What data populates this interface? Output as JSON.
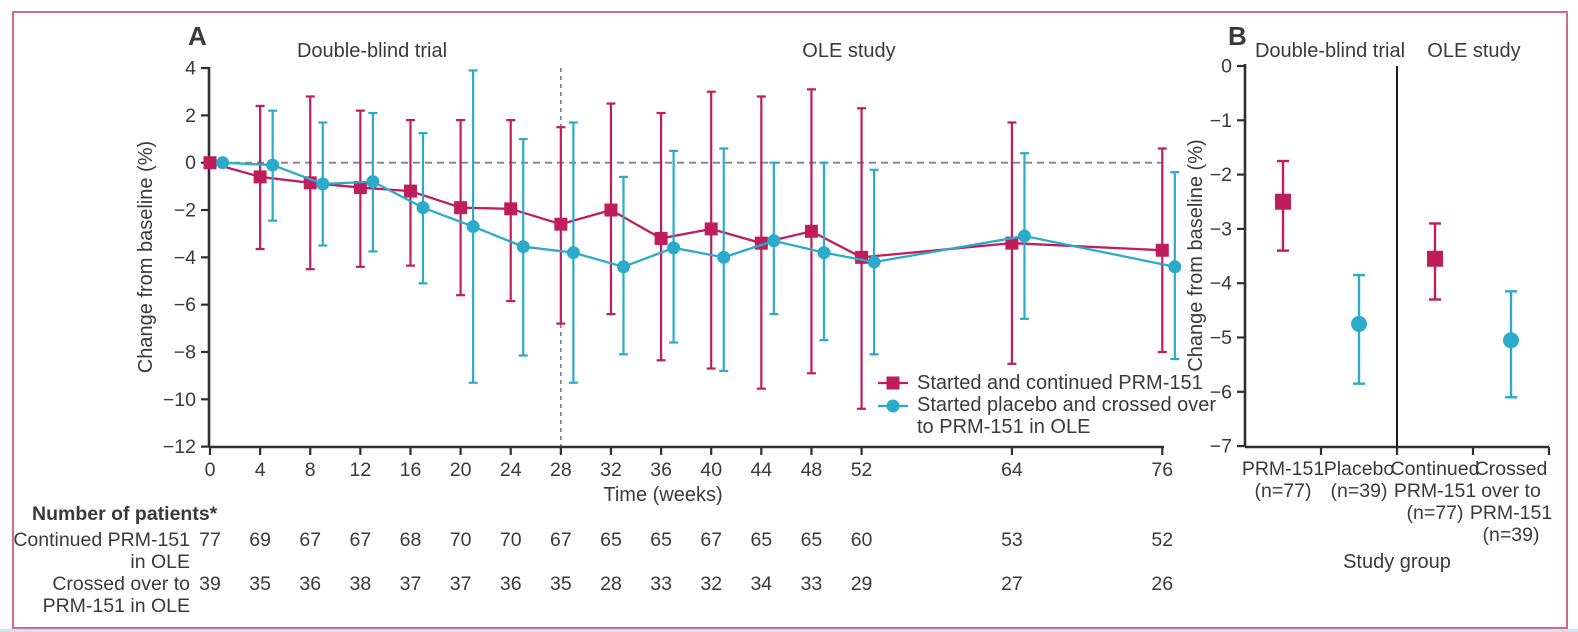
{
  "palette": {
    "red_series": "#bf1d5b",
    "blue_series": "#2caac9",
    "text": "#3a3a3a",
    "axis": "#2f2f2f",
    "dashed_line": "#7d8488",
    "frame_border": "#d4688e",
    "bottom_strip": "#cfe4f0"
  },
  "patients_table": {
    "title": "Number of patients*",
    "rows": [
      {
        "label_lines": [
          "Continued PRM-151",
          "in OLE"
        ],
        "values": [
          77,
          69,
          67,
          67,
          68,
          70,
          70,
          67,
          65,
          65,
          67,
          65,
          65,
          60,
          53,
          52
        ]
      },
      {
        "label_lines": [
          "Crossed over to",
          "PRM-151 in OLE"
        ],
        "values": [
          39,
          35,
          36,
          38,
          37,
          37,
          36,
          35,
          28,
          33,
          32,
          34,
          33,
          29,
          27,
          26
        ]
      }
    ]
  },
  "chart_data": [
    {
      "id": "A",
      "type": "line",
      "panel_label": "A",
      "section_labels": [
        "Double-blind trial",
        "OLE study"
      ],
      "section_divider_week": 28,
      "zero_reference_line": true,
      "xlabel": "Time (weeks)",
      "ylabel": "Change from baseline (%)",
      "xlim": [
        0,
        76
      ],
      "ylim": [
        -12,
        4
      ],
      "yticks": [
        4,
        2,
        0,
        -2,
        -4,
        -6,
        -8,
        -10,
        -12
      ],
      "xticks": [
        0,
        4,
        8,
        12,
        16,
        20,
        24,
        28,
        32,
        36,
        40,
        44,
        48,
        52,
        64,
        76
      ],
      "series": [
        {
          "name": "Started and continued PRM-151",
          "marker": "square",
          "color": "#bf1d5b",
          "x": [
            0,
            4,
            8,
            12,
            16,
            20,
            24,
            28,
            32,
            36,
            40,
            44,
            48,
            52,
            64,
            76
          ],
          "y": [
            0,
            -0.6,
            -0.85,
            -1.05,
            -1.2,
            -1.9,
            -1.95,
            -2.6,
            -2.0,
            -3.2,
            -2.8,
            -3.4,
            -2.9,
            -4.0,
            -3.4,
            -3.7
          ],
          "ci_high": [
            null,
            2.4,
            2.8,
            2.2,
            1.8,
            1.8,
            1.8,
            1.5,
            2.5,
            2.1,
            3.0,
            2.8,
            3.1,
            2.3,
            1.7,
            0.6
          ],
          "ci_low": [
            null,
            -3.65,
            -4.5,
            -4.4,
            -4.35,
            -5.6,
            -5.85,
            -6.8,
            -6.4,
            -8.35,
            -8.7,
            -9.55,
            -8.9,
            -10.4,
            -8.5,
            -8.0
          ]
        },
        {
          "name": "Started placebo and crossed over to PRM-151 in OLE",
          "marker": "circle",
          "color": "#2caac9",
          "x": [
            1,
            5,
            9,
            13,
            17,
            21,
            25,
            29,
            33,
            37,
            41,
            45,
            49,
            53,
            65,
            77
          ],
          "y": [
            0,
            -0.1,
            -0.9,
            -0.8,
            -1.9,
            -2.7,
            -3.55,
            -3.8,
            -4.4,
            -3.6,
            -4.0,
            -3.3,
            -3.8,
            -4.2,
            -3.1,
            -4.4
          ],
          "ci_high": [
            null,
            2.2,
            1.7,
            2.1,
            1.25,
            3.9,
            1.0,
            1.7,
            -0.6,
            0.5,
            0.6,
            0.0,
            0.0,
            -0.3,
            0.4,
            -0.4
          ],
          "ci_low": [
            null,
            -2.45,
            -3.5,
            -3.75,
            -5.1,
            -9.3,
            -8.15,
            -9.3,
            -8.1,
            -7.6,
            -8.8,
            -6.4,
            -7.5,
            -8.1,
            -6.6,
            -8.3
          ]
        }
      ],
      "legend": [
        {
          "series": 0,
          "lines": [
            "Started and continued PRM-151"
          ]
        },
        {
          "series": 1,
          "lines": [
            "Started placebo and crossed over",
            "to PRM-151 in OLE"
          ]
        }
      ]
    },
    {
      "id": "B",
      "type": "scatter",
      "panel_label": "B",
      "section_labels": [
        "Double-blind trial",
        "OLE study"
      ],
      "divider_after_group": 2,
      "xlabel": "Study group",
      "ylabel": "Change from baseline (%)",
      "ylim": [
        -7,
        0
      ],
      "yticks": [
        0,
        -1,
        -2,
        -3,
        -4,
        -5,
        -6,
        -7
      ],
      "groups": [
        {
          "label_lines": [
            "PRM-151",
            "(n=77)"
          ],
          "marker": "square",
          "color": "#bf1d5b",
          "value": -2.5,
          "ci": [
            -3.4,
            -1.75
          ]
        },
        {
          "label_lines": [
            "Placebo",
            "(n=39)"
          ],
          "marker": "circle",
          "color": "#2caac9",
          "value": -4.75,
          "ci": [
            -5.85,
            -3.85
          ]
        },
        {
          "label_lines": [
            "Continued",
            "PRM-151",
            "(n=77)"
          ],
          "marker": "square",
          "color": "#bf1d5b",
          "value": -3.55,
          "ci": [
            -4.3,
            -2.9
          ]
        },
        {
          "label_lines": [
            "Crossed",
            "over to",
            "PRM-151",
            "(n=39)"
          ],
          "marker": "circle",
          "color": "#2caac9",
          "value": -5.05,
          "ci": [
            -6.1,
            -4.15
          ]
        }
      ]
    }
  ]
}
